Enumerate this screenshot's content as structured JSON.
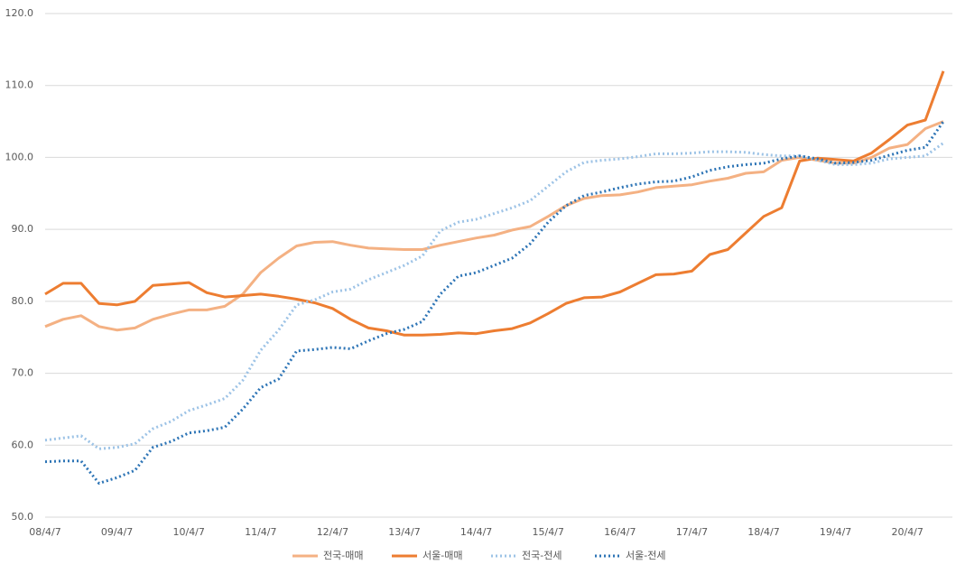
{
  "chart_data": {
    "type": "line",
    "categories": [
      "08/4/7",
      null,
      null,
      null,
      "09/4/7",
      null,
      null,
      null,
      "10/4/7",
      null,
      null,
      null,
      "11/4/7",
      null,
      null,
      null,
      "12/4/7",
      null,
      null,
      null,
      "13/4/7",
      null,
      null,
      null,
      "14/4/7",
      null,
      null,
      null,
      "15/4/7",
      null,
      null,
      null,
      "16/4/7",
      null,
      null,
      null,
      "17/4/7",
      null,
      null,
      null,
      "18/4/7",
      null,
      null,
      null,
      "19/4/7",
      null,
      null,
      null,
      "20/4/7",
      null,
      null
    ],
    "series": [
      {
        "name": "전국-매매",
        "color": "#f4b183",
        "style": "solid",
        "values": [
          76.5,
          77.5,
          78,
          76.5,
          76,
          76.3,
          77.5,
          78.2,
          78.8,
          78.8,
          79.3,
          81,
          84,
          86,
          87.7,
          88.2,
          88.3,
          87.8,
          87.4,
          87.3,
          87.2,
          87.2,
          87.8,
          88.3,
          88.8,
          89.2,
          89.9,
          90.4,
          91.8,
          93.3,
          94.3,
          94.7,
          94.8,
          95.2,
          95.8,
          96,
          96.2,
          96.7,
          97.1,
          97.8,
          98,
          99.6,
          100,
          99.6,
          99.2,
          99.2,
          100,
          101.3,
          101.8,
          104,
          105
        ]
      },
      {
        "name": "서울-매매",
        "color": "#ed7d31",
        "style": "solid",
        "values": [
          81,
          82.5,
          82.5,
          79.7,
          79.5,
          80,
          82.2,
          82.4,
          82.6,
          81.2,
          80.6,
          80.8,
          81,
          80.7,
          80.3,
          79.8,
          79,
          77.5,
          76.3,
          75.9,
          75.3,
          75.3,
          75.4,
          75.6,
          75.5,
          75.9,
          76.2,
          77,
          78.3,
          79.7,
          80.5,
          80.6,
          81.3,
          82.5,
          83.7,
          83.8,
          84.2,
          86.5,
          87.2,
          89.5,
          91.8,
          93,
          99.5,
          99.9,
          99.7,
          99.5,
          100.6,
          102.5,
          104.5,
          105.2,
          112
        ]
      },
      {
        "name": "전국-전세",
        "color": "#9dc3e6",
        "style": "dotted",
        "values": [
          60.7,
          61,
          61.3,
          59.5,
          59.7,
          60.2,
          62.3,
          63.3,
          64.8,
          65.6,
          66.5,
          69,
          73.2,
          76,
          79.5,
          80.2,
          81.3,
          81.7,
          83,
          84,
          85,
          86.3,
          89.8,
          91,
          91.4,
          92.2,
          93,
          94,
          96,
          98,
          99.3,
          99.6,
          99.8,
          100.1,
          100.5,
          100.5,
          100.6,
          100.8,
          100.8,
          100.7,
          100.4,
          100.2,
          100.2,
          99.6,
          99,
          99,
          99.2,
          99.8,
          100,
          100.2,
          102
        ]
      },
      {
        "name": "서울-전세",
        "color": "#2e75b6",
        "style": "dotted",
        "values": [
          57.7,
          57.8,
          57.8,
          54.7,
          55.5,
          56.5,
          59.7,
          60.5,
          61.7,
          62,
          62.5,
          65,
          68,
          69.2,
          73.1,
          73.3,
          73.6,
          73.4,
          74.5,
          75.5,
          76.1,
          77.2,
          81,
          83.5,
          84,
          85,
          86,
          88,
          91,
          93.3,
          94.7,
          95.2,
          95.8,
          96.3,
          96.6,
          96.7,
          97.3,
          98.2,
          98.7,
          99,
          99.2,
          99.8,
          100.2,
          99.8,
          99.2,
          99.3,
          99.6,
          100.3,
          101,
          101.4,
          105
        ]
      }
    ],
    "ylim": [
      50,
      120
    ],
    "yticks": [
      {
        "value": 50,
        "label": "50.0"
      },
      {
        "value": 60,
        "label": "60.0"
      },
      {
        "value": 70,
        "label": "70.0"
      },
      {
        "value": 80,
        "label": "80.0"
      },
      {
        "value": 90,
        "label": "90.0"
      },
      {
        "value": 100,
        "label": "100.0"
      },
      {
        "value": 110,
        "label": "110.0"
      },
      {
        "value": 120,
        "label": "120.0"
      }
    ],
    "grid": true,
    "legend": "bottom"
  }
}
